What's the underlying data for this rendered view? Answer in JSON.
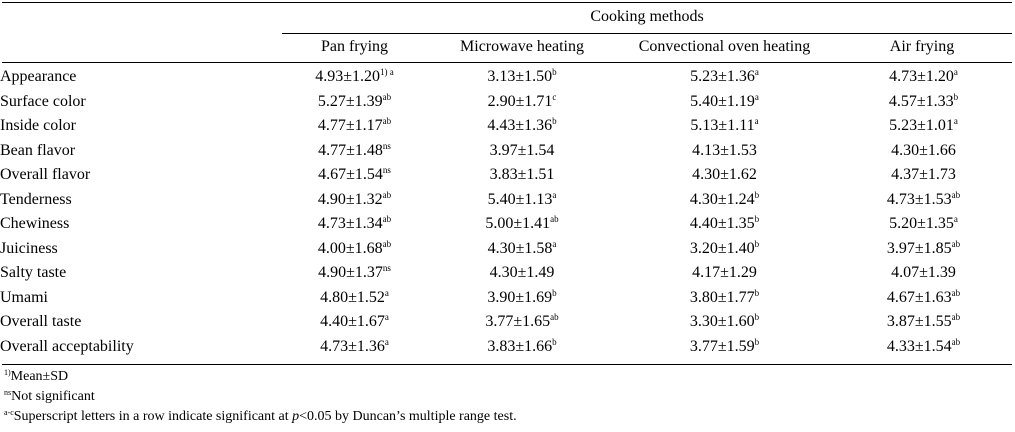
{
  "table": {
    "group_header": "Cooking methods",
    "columns": [
      "Pan frying",
      "Microwave heating",
      "Convectional oven heating",
      "Air frying"
    ],
    "rows": [
      {
        "label": "Appearance",
        "cells": [
          {
            "v": "4.93±1.20",
            "s": "1) a"
          },
          {
            "v": "3.13±1.50",
            "s": "b"
          },
          {
            "v": "5.23±1.36",
            "s": "a"
          },
          {
            "v": "4.73±1.20",
            "s": "a"
          }
        ]
      },
      {
        "label": "Surface color",
        "cells": [
          {
            "v": "5.27±1.39",
            "s": "ab"
          },
          {
            "v": "2.90±1.71",
            "s": "c"
          },
          {
            "v": "5.40±1.19",
            "s": "a"
          },
          {
            "v": "4.57±1.33",
            "s": "b"
          }
        ]
      },
      {
        "label": "Inside color",
        "cells": [
          {
            "v": "4.77±1.17",
            "s": "ab"
          },
          {
            "v": "4.43±1.36",
            "s": "b"
          },
          {
            "v": "5.13±1.11",
            "s": "a"
          },
          {
            "v": "5.23±1.01",
            "s": "a"
          }
        ]
      },
      {
        "label": "Bean flavor",
        "cells": [
          {
            "v": "4.77±1.48",
            "s": "ns"
          },
          {
            "v": "3.97±1.54",
            "s": ""
          },
          {
            "v": "4.13±1.53",
            "s": ""
          },
          {
            "v": "4.30±1.66",
            "s": ""
          }
        ]
      },
      {
        "label": "Overall flavor",
        "cells": [
          {
            "v": "4.67±1.54",
            "s": "ns"
          },
          {
            "v": "3.83±1.51",
            "s": ""
          },
          {
            "v": "4.30±1.62",
            "s": ""
          },
          {
            "v": "4.37±1.73",
            "s": ""
          }
        ]
      },
      {
        "label": "Tenderness",
        "cells": [
          {
            "v": "4.90±1.32",
            "s": "ab"
          },
          {
            "v": "5.40±1.13",
            "s": "a"
          },
          {
            "v": "4.30±1.24",
            "s": "b"
          },
          {
            "v": "4.73±1.53",
            "s": "ab"
          }
        ]
      },
      {
        "label": "Chewiness",
        "cells": [
          {
            "v": "4.73±1.34",
            "s": "ab"
          },
          {
            "v": "5.00±1.41",
            "s": "ab"
          },
          {
            "v": "4.40±1.35",
            "s": "b"
          },
          {
            "v": "5.20±1.35",
            "s": "a"
          }
        ]
      },
      {
        "label": "Juiciness",
        "cells": [
          {
            "v": "4.00±1.68",
            "s": "ab"
          },
          {
            "v": "4.30±1.58",
            "s": "a"
          },
          {
            "v": "3.20±1.40",
            "s": "b"
          },
          {
            "v": "3.97±1.85",
            "s": "ab"
          }
        ]
      },
      {
        "label": "Salty taste",
        "cells": [
          {
            "v": "4.90±1.37",
            "s": "ns"
          },
          {
            "v": "4.30±1.49",
            "s": ""
          },
          {
            "v": "4.17±1.29",
            "s": ""
          },
          {
            "v": "4.07±1.39",
            "s": ""
          }
        ]
      },
      {
        "label": "Umami",
        "cells": [
          {
            "v": "4.80±1.52",
            "s": "a"
          },
          {
            "v": "3.90±1.69",
            "s": "b"
          },
          {
            "v": "3.80±1.77",
            "s": "b"
          },
          {
            "v": "4.67±1.63",
            "s": "ab"
          }
        ]
      },
      {
        "label": "Overall taste",
        "cells": [
          {
            "v": "4.40±1.67",
            "s": "a"
          },
          {
            "v": "3.77±1.65",
            "s": "ab"
          },
          {
            "v": "3.30±1.60",
            "s": "b"
          },
          {
            "v": "3.87±1.55",
            "s": "ab"
          }
        ]
      },
      {
        "label": "Overall acceptability",
        "cells": [
          {
            "v": "4.73±1.36",
            "s": "a"
          },
          {
            "v": "3.83±1.66",
            "s": "b"
          },
          {
            "v": "3.77±1.59",
            "s": "b"
          },
          {
            "v": "4.33±1.54",
            "s": "ab"
          }
        ]
      }
    ]
  },
  "footnotes": {
    "note1": {
      "mark": "1)",
      "text": "Mean±SD"
    },
    "note2": {
      "mark": "ns",
      "text": "Not significant"
    },
    "note3": {
      "mark": "a-c",
      "text_before": "Superscript letters in a row indicate significant at ",
      "p": "p",
      "text_after": "<0.05 by Duncan’s multiple range test."
    }
  }
}
